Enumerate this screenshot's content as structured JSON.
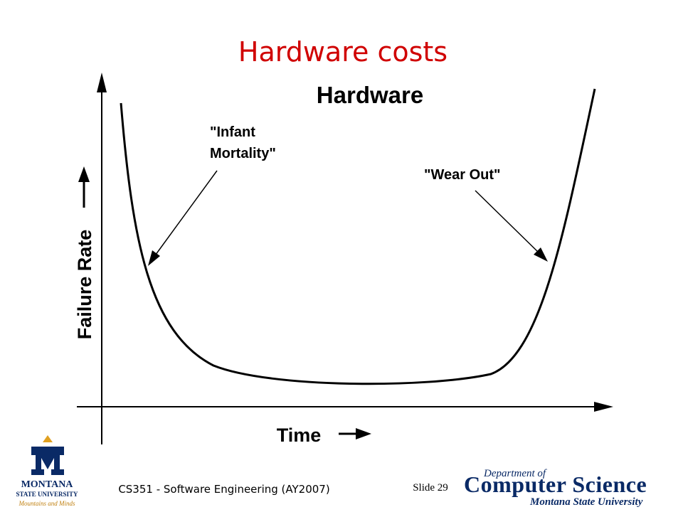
{
  "slide": {
    "title": "Hardware costs",
    "footer": "CS351 - Software Engineering (AY2007)",
    "slide_number": "Slide 29"
  },
  "diagram": {
    "title": "Hardware",
    "y_axis_label": "Failure Rate",
    "x_axis_label": "Time",
    "annotations": {
      "infant_mortality": [
        "\"Infant",
        "Mortality\""
      ],
      "wear_out": "\"Wear Out\""
    }
  },
  "logos": {
    "left": {
      "name": "MONTANA",
      "sub": "STATE UNIVERSITY",
      "tagline": "Mountains and Minds"
    },
    "right": {
      "dept": "Department of",
      "name": "Computer Science",
      "sub": "Montana State University"
    }
  }
}
